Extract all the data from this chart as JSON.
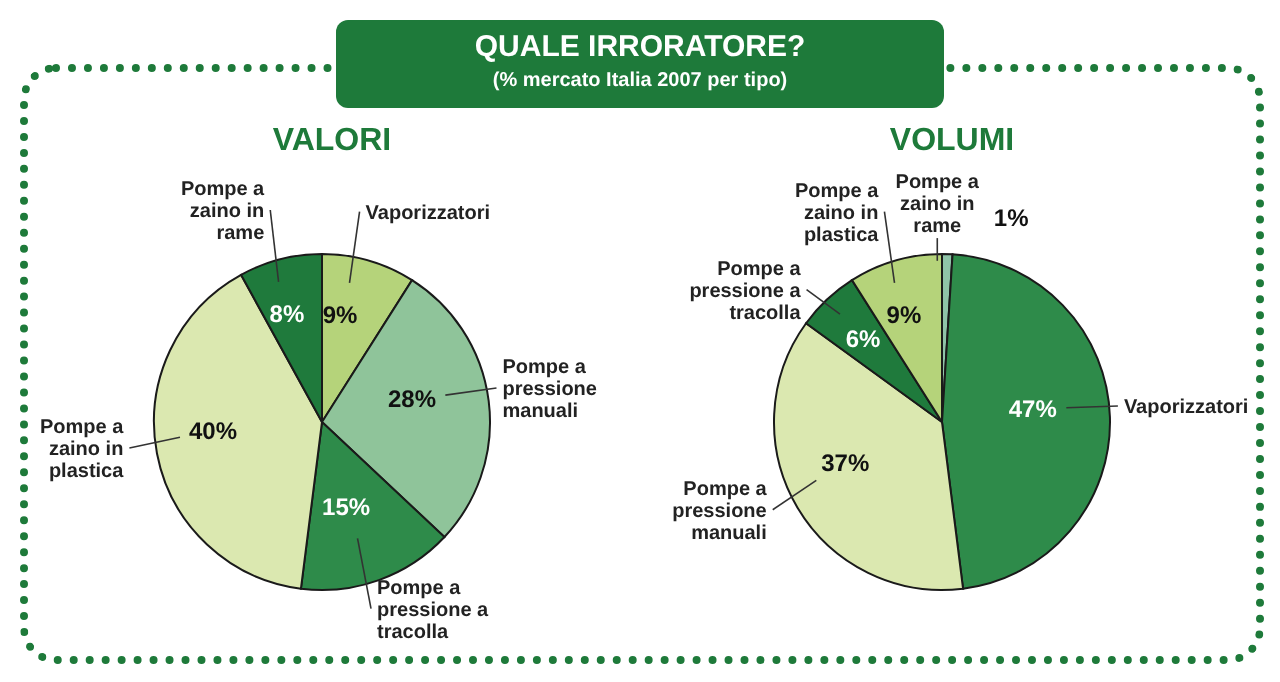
{
  "chart_data": [
    {
      "type": "other",
      "title": "QUALE IRRORATORE?",
      "subtitle": "(% mercato Italia 2007 per tipo)"
    },
    {
      "type": "pie",
      "title": "VALORI",
      "categories": [
        "Vaporizzatori",
        "Pompe a pressione manuali",
        "Pompe a pressione a tracolla",
        "Pompe a zaino in plastica",
        "Pompe a zaino in rame"
      ],
      "values": [
        9,
        28,
        15,
        40,
        8
      ],
      "value_labels": [
        "9%",
        "28%",
        "15%",
        "40%",
        "8%"
      ],
      "colors": [
        "#b5d37a",
        "#8fc49a",
        "#2e8b4a",
        "#dbe8b0",
        "#1f7a3c"
      ]
    },
    {
      "type": "pie",
      "title": "VOLUMI",
      "categories": [
        "Pompe a zaino in rame",
        "Vaporizzatori",
        "Pompe a pressione manuali",
        "Pompe a pressione a tracolla",
        "Pompe a zaino in plastica"
      ],
      "values": [
        1,
        47,
        37,
        6,
        9
      ],
      "value_labels": [
        "1%",
        "47%",
        "37%",
        "6%",
        "9%"
      ],
      "colors": [
        "#8fc4a8",
        "#2e8b4a",
        "#dbe8b0",
        "#1f7a3c",
        "#b5d37a"
      ]
    }
  ]
}
